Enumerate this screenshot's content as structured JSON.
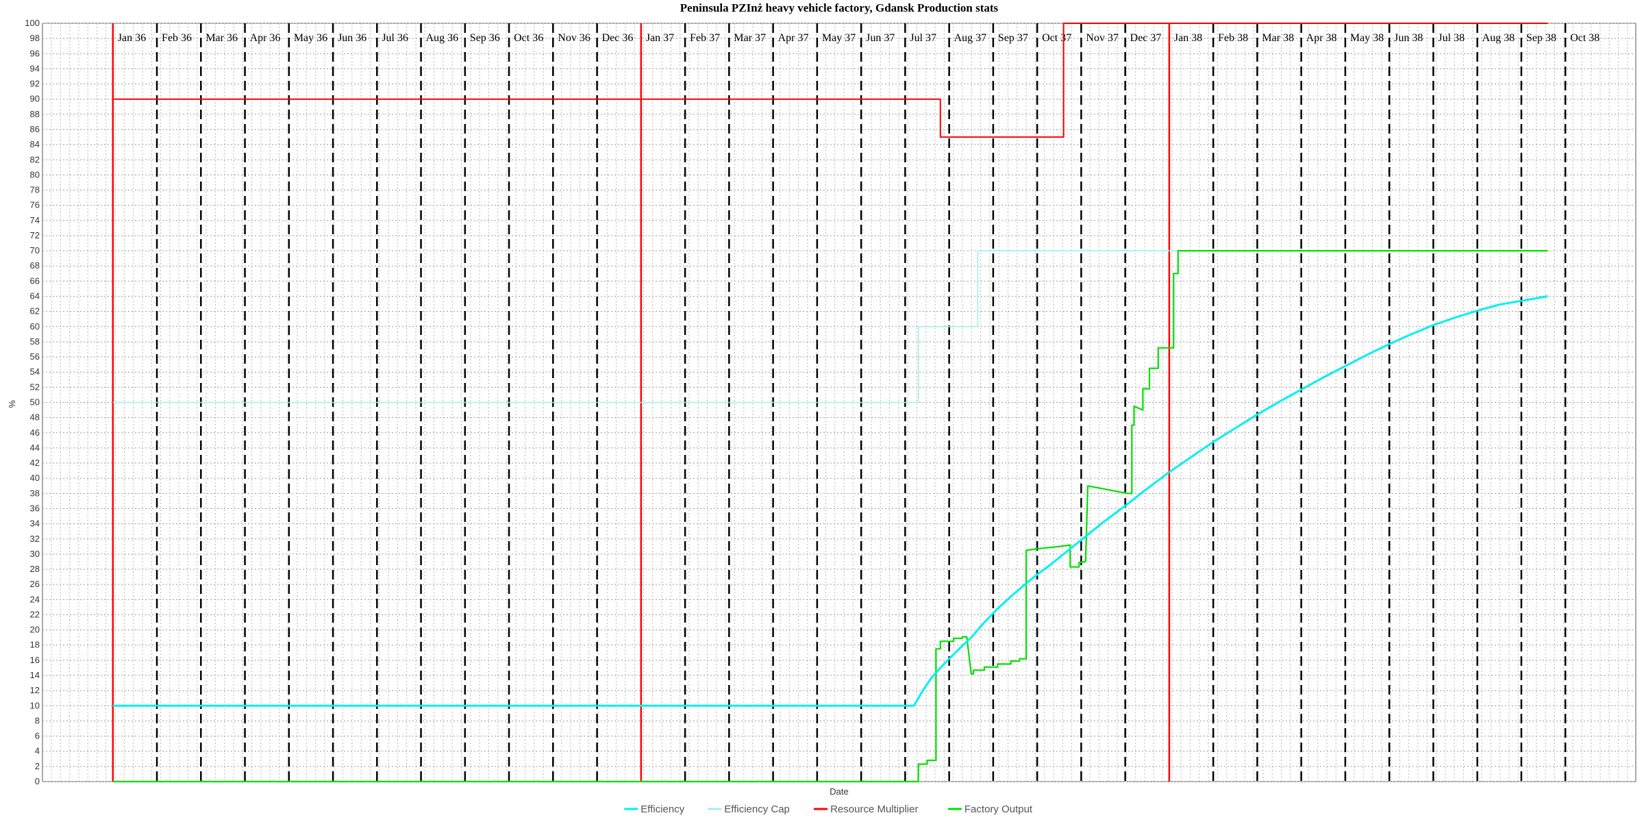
{
  "chart_data": {
    "type": "line",
    "title": "Peninsula PZInż heavy vehicle factory, Gdansk Production stats",
    "xlabel": "Date",
    "ylabel": "%",
    "ylim": [
      0,
      100
    ],
    "ytick_step": 2,
    "xlim": [
      -1.6,
      34.6
    ],
    "grid": true,
    "legend_position": "bottom-center",
    "month_labels": [
      "Jan 36",
      "Feb 36",
      "Mar 36",
      "Apr 36",
      "May 36",
      "Jun 36",
      "Jul 36",
      "Aug 36",
      "Sep 36",
      "Oct 36",
      "Nov 36",
      "Dec 36",
      "Jan 37",
      "Feb 37",
      "Mar 37",
      "Apr 37",
      "May 37",
      "Jun 37",
      "Jul 37",
      "Aug 37",
      "Sep 37",
      "Oct 37",
      "Nov 37",
      "Dec 37",
      "Jan 38",
      "Feb 38",
      "Mar 38",
      "Apr 38",
      "May 38",
      "Jun 38",
      "Jul 38",
      "Aug 38",
      "Sep 38",
      "Oct 38"
    ],
    "year_markers": [
      0,
      12,
      24
    ],
    "series": [
      {
        "name": "Efficiency Cap",
        "color": "#a0f0f0",
        "width": 1.6,
        "points": [
          [
            0,
            50
          ],
          [
            18.3,
            50
          ],
          [
            18.3,
            60
          ],
          [
            19.65,
            60
          ],
          [
            19.65,
            70
          ],
          [
            32.6,
            70
          ]
        ]
      },
      {
        "name": "Resource Multiplier",
        "color": "#ff0000",
        "width": 2,
        "points": [
          [
            0,
            90
          ],
          [
            18.8,
            90
          ],
          [
            18.8,
            85
          ],
          [
            21.6,
            85
          ],
          [
            21.6,
            100
          ],
          [
            32.6,
            100
          ]
        ]
      },
      {
        "name": "Factory Output",
        "color": "#00e000",
        "width": 2.2,
        "points": [
          [
            0,
            0
          ],
          [
            18.3,
            0
          ],
          [
            18.3,
            2.3
          ],
          [
            18.5,
            2.3
          ],
          [
            18.5,
            2.8
          ],
          [
            18.7,
            2.8
          ],
          [
            18.7,
            17.5
          ],
          [
            18.8,
            17.5
          ],
          [
            18.8,
            18.5
          ],
          [
            19.1,
            18.5
          ],
          [
            19.1,
            18.9
          ],
          [
            19.3,
            18.9
          ],
          [
            19.3,
            19.1
          ],
          [
            19.4,
            19.1
          ],
          [
            19.5,
            14.2
          ],
          [
            19.55,
            14.2
          ],
          [
            19.55,
            14.7
          ],
          [
            19.8,
            14.7
          ],
          [
            19.8,
            15.1
          ],
          [
            20.1,
            15.1
          ],
          [
            20.1,
            15.5
          ],
          [
            20.4,
            15.5
          ],
          [
            20.4,
            15.9
          ],
          [
            20.6,
            15.9
          ],
          [
            20.6,
            16.2
          ],
          [
            20.75,
            16.2
          ],
          [
            20.75,
            30.5
          ],
          [
            21.0,
            30.7
          ],
          [
            21.5,
            31.0
          ],
          [
            21.75,
            31.2
          ],
          [
            21.75,
            28.3
          ],
          [
            21.95,
            28.3
          ],
          [
            21.95,
            28.9
          ],
          [
            22.1,
            29.0
          ],
          [
            22.15,
            39.0
          ],
          [
            23.05,
            38.0
          ],
          [
            23.05,
            38.0
          ],
          [
            23.15,
            38.0
          ],
          [
            23.15,
            47.0
          ],
          [
            23.2,
            47.0
          ],
          [
            23.2,
            49.5
          ],
          [
            23.4,
            49.0
          ],
          [
            23.4,
            51.8
          ],
          [
            23.55,
            51.8
          ],
          [
            23.55,
            54.5
          ],
          [
            23.75,
            54.5
          ],
          [
            23.75,
            57.2
          ],
          [
            24.1,
            57.2
          ],
          [
            24.1,
            67.0
          ],
          [
            24.2,
            67.0
          ],
          [
            24.2,
            70.0
          ],
          [
            32.6,
            70.0
          ]
        ]
      },
      {
        "name": "Efficiency",
        "color": "#00f0f0",
        "width": 3,
        "points": [
          [
            0,
            10
          ],
          [
            18.2,
            10
          ],
          [
            18.4,
            12.0
          ],
          [
            18.6,
            13.7
          ],
          [
            18.8,
            15.0
          ],
          [
            19.0,
            16.2
          ],
          [
            19.3,
            17.9
          ],
          [
            19.5,
            19.0
          ],
          [
            19.8,
            21.0
          ],
          [
            20.1,
            22.8
          ],
          [
            20.4,
            24.4
          ],
          [
            20.7,
            25.9
          ],
          [
            21.0,
            27.3
          ],
          [
            21.3,
            28.6
          ],
          [
            21.6,
            30.0
          ],
          [
            21.9,
            31.4
          ],
          [
            22.2,
            32.8
          ],
          [
            22.5,
            34.2
          ],
          [
            22.8,
            35.5
          ],
          [
            23.1,
            36.8
          ],
          [
            23.4,
            38.2
          ],
          [
            23.7,
            39.5
          ],
          [
            24.0,
            40.8
          ],
          [
            24.5,
            42.8
          ],
          [
            25.0,
            44.8
          ],
          [
            25.5,
            46.6
          ],
          [
            26.0,
            48.4
          ],
          [
            26.5,
            50.1
          ],
          [
            27.0,
            51.7
          ],
          [
            27.5,
            53.3
          ],
          [
            28.0,
            54.8
          ],
          [
            28.5,
            56.3
          ],
          [
            29.0,
            57.7
          ],
          [
            29.5,
            59.0
          ],
          [
            30.0,
            60.2
          ],
          [
            30.5,
            61.2
          ],
          [
            31.0,
            62.1
          ],
          [
            31.5,
            62.9
          ],
          [
            32.0,
            63.4
          ],
          [
            32.6,
            64.0
          ]
        ]
      }
    ]
  },
  "legend": {
    "items": [
      {
        "label": "Efficiency",
        "color": "#00f0f0"
      },
      {
        "label": "Efficiency Cap",
        "color": "#a0f0f0"
      },
      {
        "label": "Resource Multiplier",
        "color": "#ff0000"
      },
      {
        "label": "Factory Output",
        "color": "#00e000"
      }
    ]
  }
}
